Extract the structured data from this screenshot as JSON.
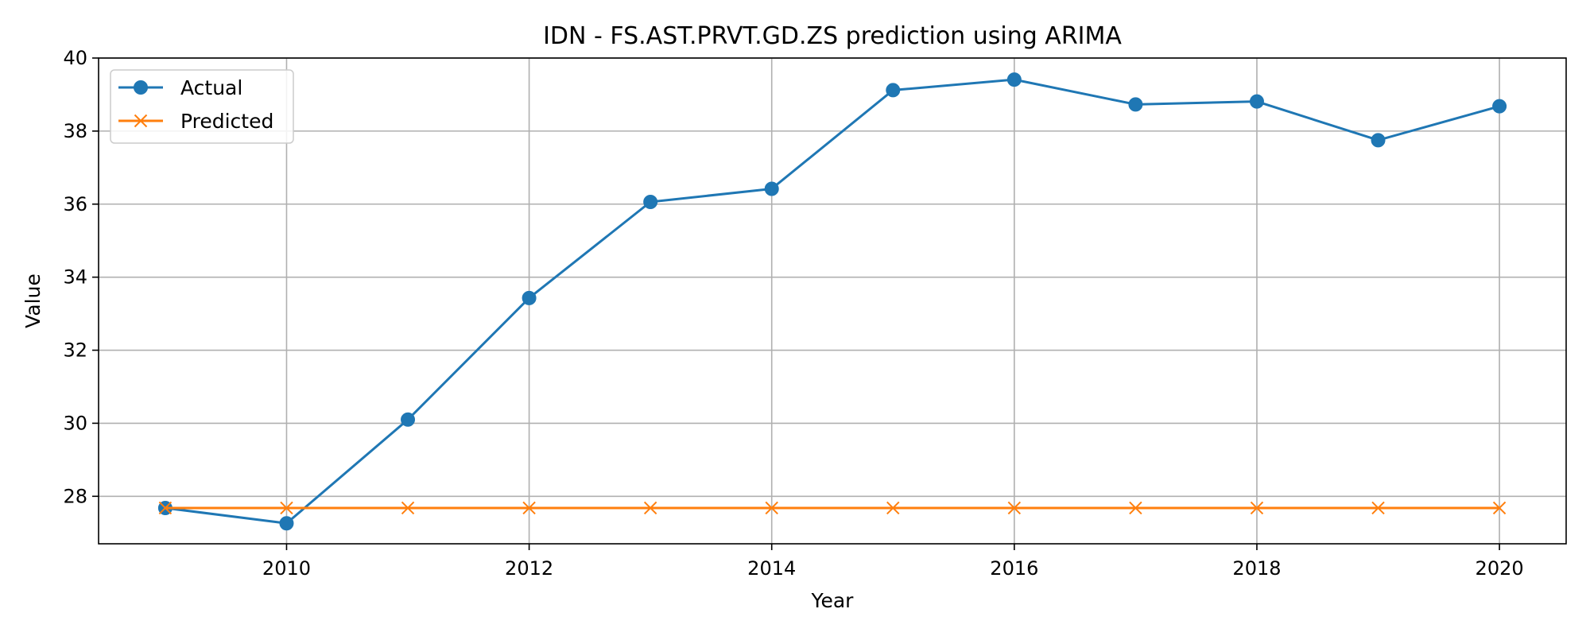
{
  "chart_data": {
    "type": "line",
    "title": "IDN - FS.AST.PRVT.GD.ZS prediction using ARIMA",
    "xlabel": "Year",
    "ylabel": "Value",
    "x": [
      2009,
      2010,
      2011,
      2012,
      2013,
      2014,
      2015,
      2016,
      2017,
      2018,
      2019,
      2020
    ],
    "xlim": [
      2008.45,
      2020.55
    ],
    "ylim": [
      26.7,
      40.0
    ],
    "x_ticks": [
      2010,
      2012,
      2014,
      2016,
      2018,
      2020
    ],
    "y_ticks": [
      28,
      30,
      32,
      34,
      36,
      38,
      40
    ],
    "grid": true,
    "legend_position": "upper left",
    "series": [
      {
        "name": "Actual",
        "color": "#1f77b4",
        "marker": "circle",
        "values": [
          27.68,
          27.26,
          30.1,
          33.43,
          36.06,
          36.42,
          39.12,
          39.41,
          38.73,
          38.81,
          37.75,
          38.68
        ]
      },
      {
        "name": "Predicted",
        "color": "#ff7f0e",
        "marker": "x",
        "values": [
          27.68,
          27.68,
          27.68,
          27.68,
          27.68,
          27.68,
          27.68,
          27.68,
          27.68,
          27.68,
          27.68,
          27.68
        ]
      }
    ]
  }
}
